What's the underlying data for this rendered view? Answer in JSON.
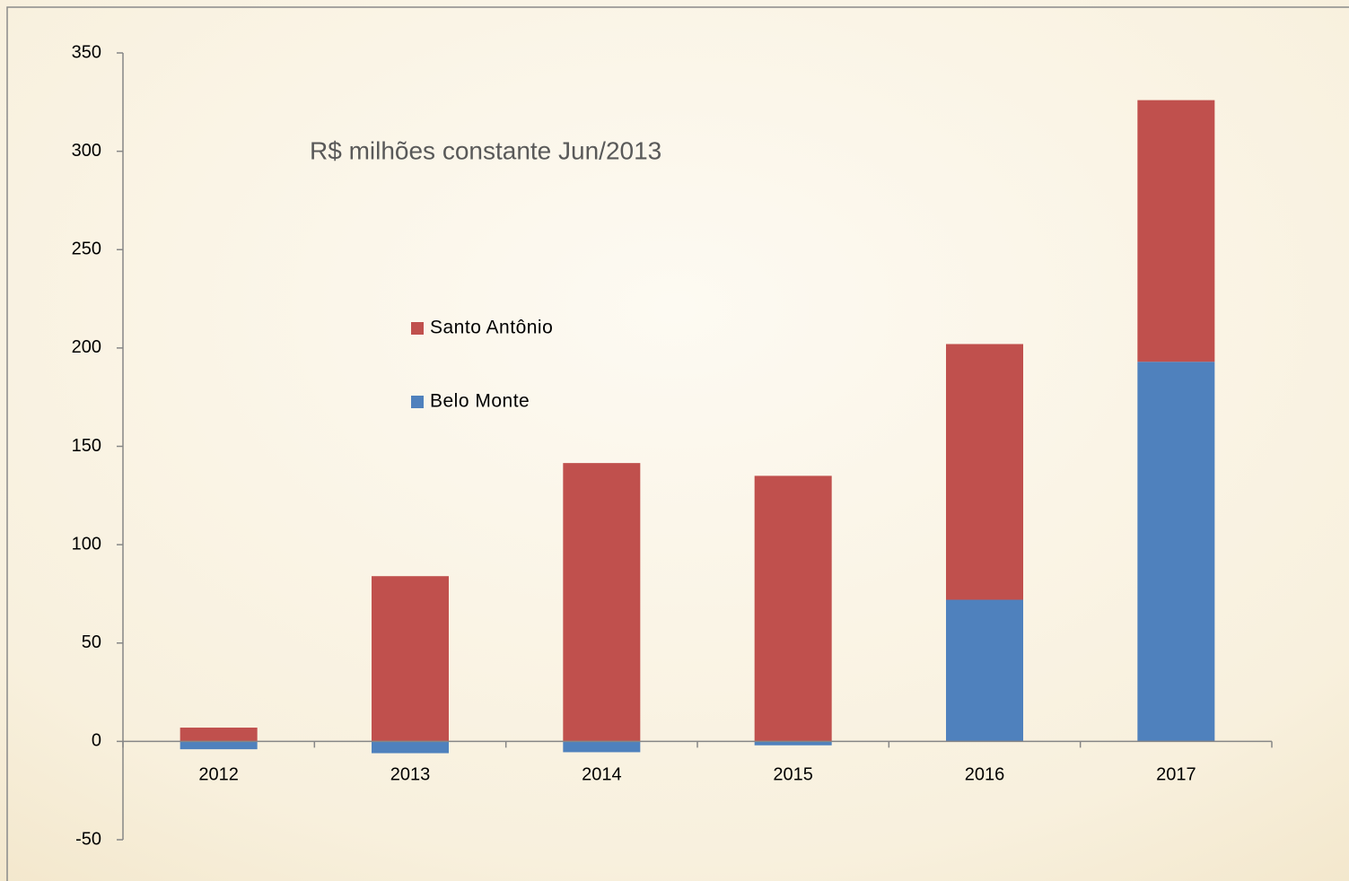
{
  "chart_data": {
    "type": "stacked_bar",
    "annotation": "R$ milhões constante Jun/2013",
    "categories": [
      "2012",
      "2013",
      "2014",
      "2015",
      "2016",
      "2017"
    ],
    "series": [
      {
        "name": "Belo Monte",
        "color": "#4f81bd",
        "values": [
          -4,
          -6,
          -5.5,
          -2,
          72,
          193
        ]
      },
      {
        "name": "Santo Antônio",
        "color": "#c0504d",
        "values": [
          7,
          84,
          141.5,
          135,
          130,
          133
        ]
      }
    ],
    "ylim": [
      -50,
      350
    ],
    "yticks": [
      -50,
      0,
      50,
      100,
      150,
      200,
      250,
      300,
      350
    ],
    "grid": false,
    "legend_reversed": true
  }
}
